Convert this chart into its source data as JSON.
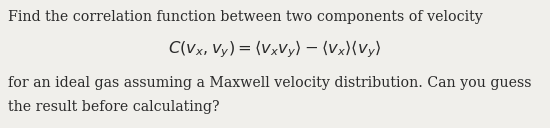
{
  "background_color": "#f0efeb",
  "text_color": "#2a2a2a",
  "line1": "Find the correlation function between two components of velocity",
  "line2_latex": "$C(v_x, v_y) = \\langle v_x v_y \\rangle - \\langle v_x \\rangle \\langle v_y \\rangle$",
  "line3": "for an ideal gas assuming a Maxwell velocity distribution. Can you guess",
  "line4": "the result before calculating?",
  "fontsize_text": 10.2,
  "fontsize_math": 11.8,
  "fig_width": 5.5,
  "fig_height": 1.28,
  "dpi": 100
}
